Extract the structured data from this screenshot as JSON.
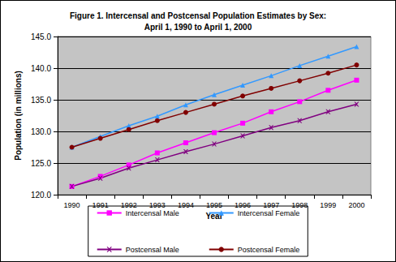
{
  "chart_data": {
    "type": "line",
    "title": "Figure 1. Intercensal and Postcensal Population Estimates by Sex:\nApril 1, 1990 to April 1, 2000",
    "x_label": "Year",
    "y_label": "Population (in millions)",
    "categories": [
      "1990",
      "1991",
      "1992",
      "1993",
      "1994",
      "1995",
      "1996",
      "1997",
      "1998",
      "1999",
      "2000"
    ],
    "series": [
      {
        "name": "Intercensal Male",
        "color": "#ff00ff",
        "marker": "square",
        "values": [
          121.3,
          122.9,
          124.7,
          126.6,
          128.2,
          129.8,
          131.3,
          133.1,
          134.7,
          136.5,
          138.1
        ]
      },
      {
        "name": "Intercensal Female",
        "color": "#3399ff",
        "marker": "triangle",
        "values": [
          127.5,
          129.2,
          130.9,
          132.4,
          134.2,
          135.8,
          137.3,
          138.8,
          140.4,
          141.9,
          143.4
        ]
      },
      {
        "name": "Postcensal Male",
        "color": "#800080",
        "marker": "x",
        "values": [
          121.3,
          122.6,
          124.2,
          125.5,
          126.8,
          128.0,
          129.3,
          130.6,
          131.7,
          133.1,
          134.3
        ]
      },
      {
        "name": "Postcensal Female",
        "color": "#800000",
        "marker": "circle",
        "values": [
          127.5,
          128.9,
          130.3,
          131.7,
          133.0,
          134.3,
          135.6,
          136.8,
          138.0,
          139.2,
          140.5
        ]
      }
    ],
    "ylim": [
      120,
      145
    ],
    "yticks": [
      {
        "value": 120,
        "label": "120.0"
      },
      {
        "value": 125,
        "label": "125.0"
      },
      {
        "value": 130,
        "label": "130.0"
      },
      {
        "value": 135,
        "label": "135.0"
      },
      {
        "value": 140,
        "label": "140.0"
      },
      {
        "value": 145,
        "label": "145.0"
      }
    ],
    "grid": true,
    "legend": "bottom"
  }
}
